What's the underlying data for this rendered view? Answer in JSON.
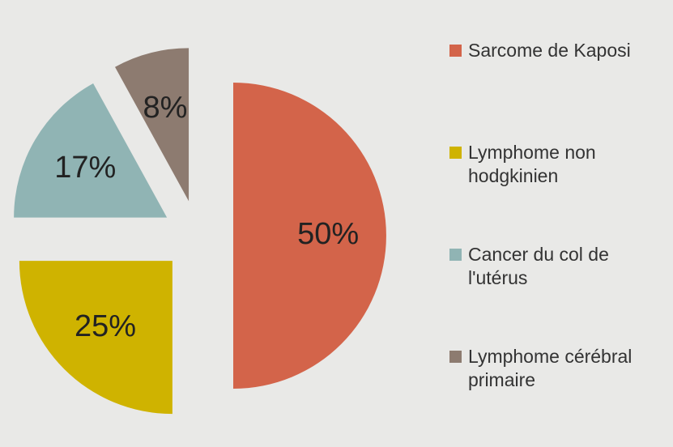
{
  "chart_data": {
    "type": "pie",
    "categories": [
      "Sarcome de Kaposi",
      "Lymphome non hodgkinien",
      "Cancer du col de l'utérus",
      "Lymphome cérébral primaire"
    ],
    "values": [
      50,
      25,
      17,
      8
    ],
    "value_labels": [
      "50%",
      "25%",
      "17%",
      "8%"
    ],
    "colors": [
      "#d3644a",
      "#cfb300",
      "#90b4b4",
      "#8d7b70"
    ],
    "legend": "right"
  }
}
